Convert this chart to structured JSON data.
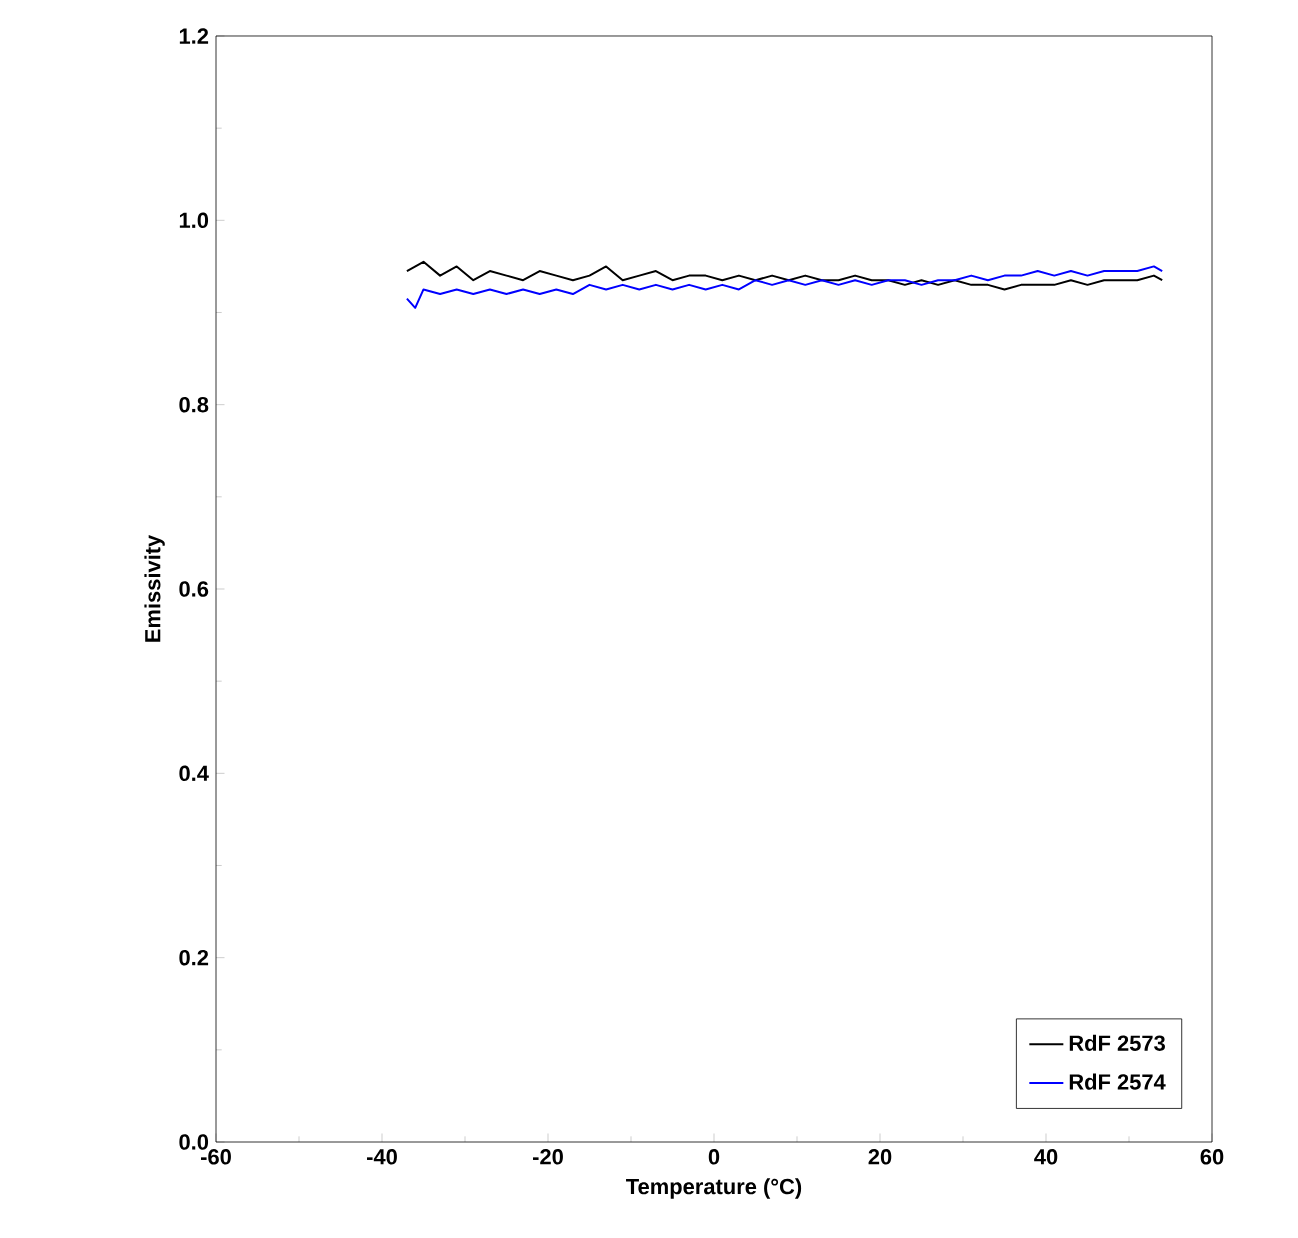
{
  "chart_data": {
    "type": "line",
    "xlabel": "Temperature (°C)",
    "ylabel": "Emissivity",
    "xlim": [
      -60,
      60
    ],
    "xticks": [
      -60,
      -40,
      -20,
      0,
      20,
      40,
      60
    ],
    "ylim": [
      0,
      1.2
    ],
    "yticks": [
      {
        "value": 0,
        "label": "0.0"
      },
      0.2,
      0.4,
      0.6,
      0.8,
      {
        "value": 1,
        "label": "1.0"
      },
      1.2
    ],
    "grid": false,
    "legend": "bottom right",
    "marker": "none",
    "line_style": "solid",
    "series": [
      {
        "name": "RdF 2573",
        "color": "#000000",
        "x": [
          -37,
          -35,
          -33,
          -31,
          -29,
          -27,
          -25,
          -23,
          -21,
          -19,
          -17,
          -15,
          -13,
          -11,
          -9,
          -7,
          -5,
          -3,
          -1,
          1,
          3,
          5,
          7,
          9,
          11,
          13,
          15,
          17,
          19,
          21,
          23,
          25,
          27,
          29,
          31,
          33,
          35,
          37,
          39,
          41,
          43,
          45,
          47,
          49,
          51,
          53,
          54
        ],
        "values": [
          0.945,
          0.955,
          0.94,
          0.95,
          0.935,
          0.945,
          0.94,
          0.935,
          0.945,
          0.94,
          0.935,
          0.94,
          0.95,
          0.935,
          0.94,
          0.945,
          0.935,
          0.94,
          0.94,
          0.935,
          0.94,
          0.935,
          0.94,
          0.935,
          0.94,
          0.935,
          0.935,
          0.94,
          0.935,
          0.935,
          0.93,
          0.935,
          0.93,
          0.935,
          0.93,
          0.93,
          0.925,
          0.93,
          0.93,
          0.93,
          0.935,
          0.93,
          0.935,
          0.935,
          0.935,
          0.94,
          0.935
        ]
      },
      {
        "name": "RdF 2574",
        "color": "#0000ff",
        "x": [
          -37,
          -36,
          -35,
          -33,
          -31,
          -29,
          -27,
          -25,
          -23,
          -21,
          -19,
          -17,
          -15,
          -13,
          -11,
          -9,
          -7,
          -5,
          -3,
          -1,
          1,
          3,
          5,
          7,
          9,
          11,
          13,
          15,
          17,
          19,
          21,
          23,
          25,
          27,
          29,
          31,
          33,
          35,
          37,
          39,
          41,
          43,
          45,
          47,
          49,
          51,
          53,
          54
        ],
        "values": [
          0.915,
          0.905,
          0.925,
          0.92,
          0.925,
          0.92,
          0.925,
          0.92,
          0.925,
          0.92,
          0.925,
          0.92,
          0.93,
          0.925,
          0.93,
          0.925,
          0.93,
          0.925,
          0.93,
          0.925,
          0.93,
          0.925,
          0.935,
          0.93,
          0.935,
          0.93,
          0.935,
          0.93,
          0.935,
          0.93,
          0.935,
          0.935,
          0.93,
          0.935,
          0.935,
          0.94,
          0.935,
          0.94,
          0.94,
          0.945,
          0.94,
          0.945,
          0.94,
          0.945,
          0.945,
          0.945,
          0.95,
          0.945
        ]
      }
    ]
  }
}
